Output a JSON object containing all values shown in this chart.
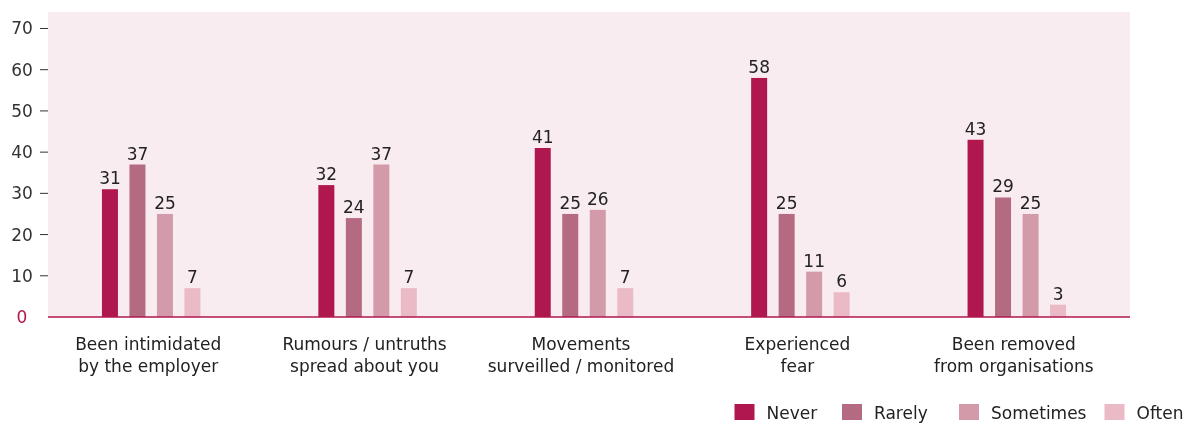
{
  "chart_data": {
    "type": "bar",
    "categories": [
      "Been intimidated\nby the employer",
      "Rumours / untruths\nspread about you",
      "Movements\nsurveilled / monitored",
      "Experienced\nfear",
      "Been removed\nfrom organisations"
    ],
    "series": [
      {
        "name": "Never",
        "color": "#b0174f",
        "values": [
          31,
          32,
          41,
          58,
          43
        ]
      },
      {
        "name": "Rarely",
        "color": "#b46a80",
        "values": [
          37,
          24,
          25,
          25,
          29
        ]
      },
      {
        "name": "Sometimes",
        "color": "#d39ba9",
        "values": [
          25,
          37,
          26,
          11,
          25
        ]
      },
      {
        "name": "Often",
        "color": "#ebbac7",
        "values": [
          7,
          7,
          7,
          6,
          3
        ]
      }
    ],
    "ylim": [
      0,
      74
    ],
    "yticks": [
      0,
      10,
      20,
      30,
      40,
      50,
      60,
      70
    ],
    "data_labels": true,
    "legend": "bottom right",
    "grid": false
  }
}
